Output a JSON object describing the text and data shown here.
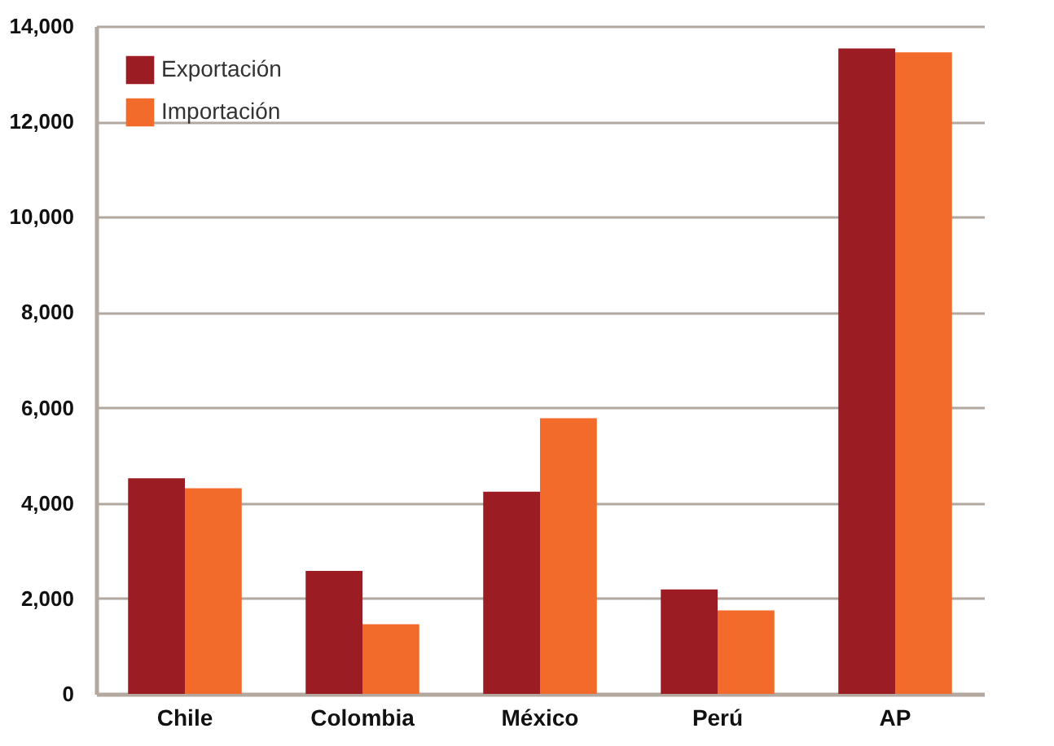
{
  "chart_data": {
    "type": "bar",
    "categories": [
      "Chile",
      "Colombia",
      "México",
      "Perú",
      "AP"
    ],
    "series": [
      {
        "name": "Exportación",
        "color": "#9b1c23",
        "values": [
          4520,
          2580,
          4240,
          2190,
          13530
        ]
      },
      {
        "name": "Importación",
        "color": "#f26b2a",
        "values": [
          4310,
          1460,
          5780,
          1750,
          13450
        ]
      }
    ],
    "ylim": [
      0,
      14000
    ],
    "yticks": [
      {
        "value": 0,
        "label": "0"
      },
      {
        "value": 2000,
        "label": "2,000"
      },
      {
        "value": 4000,
        "label": "4,000"
      },
      {
        "value": 6000,
        "label": "6,000"
      },
      {
        "value": 8000,
        "label": "8,000"
      },
      {
        "value": 10000,
        "label": "10,000"
      },
      {
        "value": 12000,
        "label": "12,000"
      },
      {
        "value": 14000,
        "label": "14,000"
      }
    ],
    "grid": "y",
    "legend": "top left"
  }
}
